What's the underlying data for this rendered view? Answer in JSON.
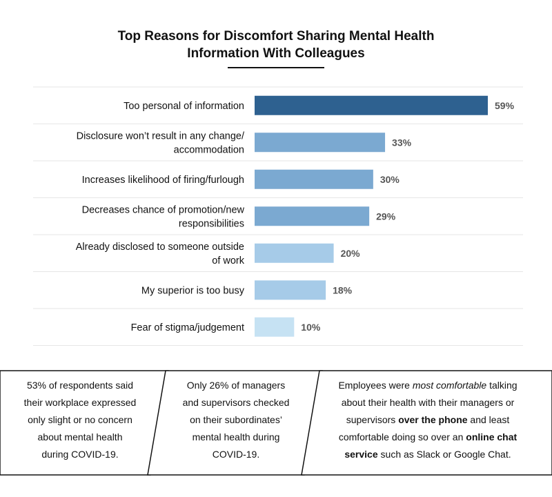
{
  "title_line1": "Top Reasons for Discomfort Sharing Mental Health",
  "title_line2": "Information With Colleagues",
  "chart_data": {
    "type": "bar",
    "orientation": "horizontal",
    "categories": [
      "Too personal of information",
      "Disclosure won’t result in any change/ accommodation",
      "Increases likelihood of firing/furlough",
      "Decreases chance of promotion/new responsibilities",
      "Already disclosed to someone outside of work",
      "My superior is too busy",
      "Fear of stigma/judgement"
    ],
    "category_lines": [
      [
        "Too personal of information"
      ],
      [
        "Disclosure won’t result in any change/",
        "accommodation"
      ],
      [
        "Increases likelihood of firing/furlough"
      ],
      [
        "Decreases chance of promotion/new",
        "responsibilities"
      ],
      [
        "Already disclosed to someone outside",
        "of work"
      ],
      [
        "My superior is too busy"
      ],
      [
        "Fear of stigma/judgement"
      ]
    ],
    "values": [
      59,
      33,
      30,
      29,
      20,
      18,
      10
    ],
    "value_labels": [
      "59%",
      "33%",
      "30%",
      "29%",
      "20%",
      "18%",
      "10%"
    ],
    "bar_colors": [
      "#2e6190",
      "#7ba9d1",
      "#7ba9d1",
      "#7ba9d1",
      "#a6cbe8",
      "#a6cbe8",
      "#c6e2f3"
    ],
    "xlim": [
      0,
      59
    ],
    "grid": "horizontal separators between rows",
    "legend": "none",
    "xlabel": "",
    "ylabel": ""
  },
  "panels": {
    "panel1": {
      "line1": "53% of respondents said",
      "line2": "their workplace expressed",
      "line3": "only slight or no concern",
      "line4": "about mental health",
      "line5": "during COVID-19."
    },
    "panel2": {
      "line1": "Only 26% of managers",
      "line2": "and supervisors checked",
      "line3": "on their subordinates’",
      "line4": "mental health during",
      "line5": "COVID-19."
    },
    "panel3": {
      "l1a": "Employees were ",
      "l1b": "most comfortable",
      "l1c": " talking",
      "line2": "about their health with their managers or",
      "l3a": "supervisors ",
      "l3b": "over the phone",
      "l3c": " and least",
      "l4a": "comfortable doing so over an ",
      "l4b": "online chat",
      "l5a": "service",
      "l5b": " such as Slack or Google Chat."
    }
  }
}
